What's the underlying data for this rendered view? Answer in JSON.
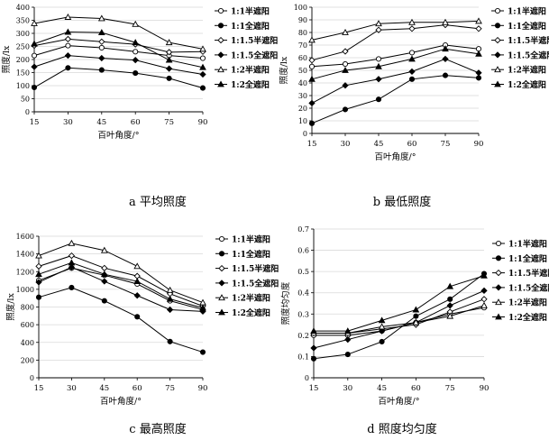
{
  "x_ticks": [
    15,
    30,
    45,
    60,
    75,
    90
  ],
  "legend": [
    {
      "label": "1:1半遮阳",
      "marker": "open-circle"
    },
    {
      "label": "1:1全遮阳",
      "marker": "filled-circle"
    },
    {
      "label": "1:1.5半遮阳",
      "marker": "open-diamond"
    },
    {
      "label": "1:1.5全遮阳",
      "marker": "filled-diamond"
    },
    {
      "label": "1:2半遮阳",
      "marker": "open-triangle"
    },
    {
      "label": "1:2全遮阳",
      "marker": "filled-triangle"
    }
  ],
  "chart_data": [
    {
      "type": "line",
      "caption": "a  平均照度",
      "xlabel": "百叶角度/°",
      "ylabel": "照度/lx",
      "x": [
        15,
        30,
        45,
        60,
        75,
        90
      ],
      "ylim": [
        0,
        400
      ],
      "yticks": [
        0,
        50,
        100,
        150,
        200,
        250,
        300,
        350,
        400
      ],
      "series": [
        {
          "name": "1:1半遮阳",
          "values": [
            215,
            253,
            245,
            230,
            215,
            205
          ]
        },
        {
          "name": "1:1全遮阳",
          "values": [
            93,
            168,
            160,
            148,
            128,
            91
          ]
        },
        {
          "name": "1:1.5半遮阳",
          "values": [
            253,
            278,
            268,
            258,
            228,
            230
          ]
        },
        {
          "name": "1:1.5全遮阳",
          "values": [
            172,
            215,
            205,
            198,
            165,
            143
          ]
        },
        {
          "name": "1:2半遮阳",
          "values": [
            338,
            362,
            357,
            335,
            265,
            240
          ]
        },
        {
          "name": "1:2全遮阳",
          "values": [
            260,
            305,
            303,
            265,
            198,
            170
          ]
        }
      ]
    },
    {
      "type": "line",
      "caption": "b  最低照度",
      "xlabel": "百叶角度/°",
      "ylabel": "照度/lx",
      "x": [
        15,
        30,
        45,
        60,
        75,
        90
      ],
      "ylim": [
        0,
        100
      ],
      "yticks": [
        0,
        10,
        20,
        30,
        40,
        50,
        60,
        70,
        80,
        90,
        100
      ],
      "series": [
        {
          "name": "1:1半遮阳",
          "values": [
            53,
            55,
            59,
            64,
            70,
            67
          ]
        },
        {
          "name": "1:1全遮阳",
          "values": [
            8,
            19,
            27,
            43,
            46,
            44
          ]
        },
        {
          "name": "1:1.5半遮阳",
          "values": [
            58,
            65,
            82,
            83,
            86,
            83
          ]
        },
        {
          "name": "1:1.5全遮阳",
          "values": [
            24,
            38,
            43,
            49,
            59,
            48
          ]
        },
        {
          "name": "1:2半遮阳",
          "values": [
            74,
            80,
            87,
            88,
            88,
            89
          ]
        },
        {
          "name": "1:2全遮阳",
          "values": [
            43,
            50,
            53,
            59,
            67,
            63
          ]
        }
      ]
    },
    {
      "type": "line",
      "caption": "c  最高照度",
      "xlabel": "百叶角度/°",
      "ylabel": "照度/lx",
      "x": [
        15,
        30,
        45,
        60,
        75,
        90
      ],
      "ylim": [
        0,
        1600
      ],
      "yticks": [
        0,
        200,
        400,
        600,
        800,
        1000,
        1200,
        1400,
        1600
      ],
      "series": [
        {
          "name": "1:1半遮阳",
          "values": [
            1100,
            1240,
            1160,
            1060,
            870,
            770
          ]
        },
        {
          "name": "1:1全遮阳",
          "values": [
            910,
            1020,
            870,
            690,
            410,
            290
          ]
        },
        {
          "name": "1:1.5半遮阳",
          "values": [
            1260,
            1380,
            1240,
            1150,
            950,
            810
          ]
        },
        {
          "name": "1:1.5全遮阳",
          "values": [
            1080,
            1250,
            1090,
            930,
            770,
            750
          ]
        },
        {
          "name": "1:2半遮阳",
          "values": [
            1380,
            1520,
            1440,
            1260,
            990,
            850
          ]
        },
        {
          "name": "1:2全遮阳",
          "values": [
            1170,
            1300,
            1170,
            1090,
            890,
            790
          ]
        }
      ]
    },
    {
      "type": "line",
      "caption": "d  照度均匀度",
      "xlabel": "百叶角度/°",
      "ylabel": "照度均匀度",
      "x": [
        15,
        30,
        45,
        60,
        75,
        90
      ],
      "ylim": [
        0,
        0.7
      ],
      "yticks": [
        0,
        0.1,
        0.2,
        0.3,
        0.4,
        0.5,
        0.6,
        0.7
      ],
      "series": [
        {
          "name": "1:1半遮阳",
          "values": [
            0.2,
            0.2,
            0.22,
            0.26,
            0.3,
            0.33
          ]
        },
        {
          "name": "1:1全遮阳",
          "values": [
            0.09,
            0.11,
            0.17,
            0.29,
            0.37,
            0.49
          ]
        },
        {
          "name": "1:1.5半遮阳",
          "values": [
            0.21,
            0.21,
            0.23,
            0.25,
            0.31,
            0.37
          ]
        },
        {
          "name": "1:1.5全遮阳",
          "values": [
            0.14,
            0.18,
            0.22,
            0.26,
            0.34,
            0.41
          ]
        },
        {
          "name": "1:2半遮阳",
          "values": [
            0.21,
            0.21,
            0.24,
            0.26,
            0.29,
            0.34
          ]
        },
        {
          "name": "1:2全遮阳",
          "values": [
            0.22,
            0.22,
            0.27,
            0.32,
            0.43,
            0.48
          ]
        }
      ]
    }
  ]
}
